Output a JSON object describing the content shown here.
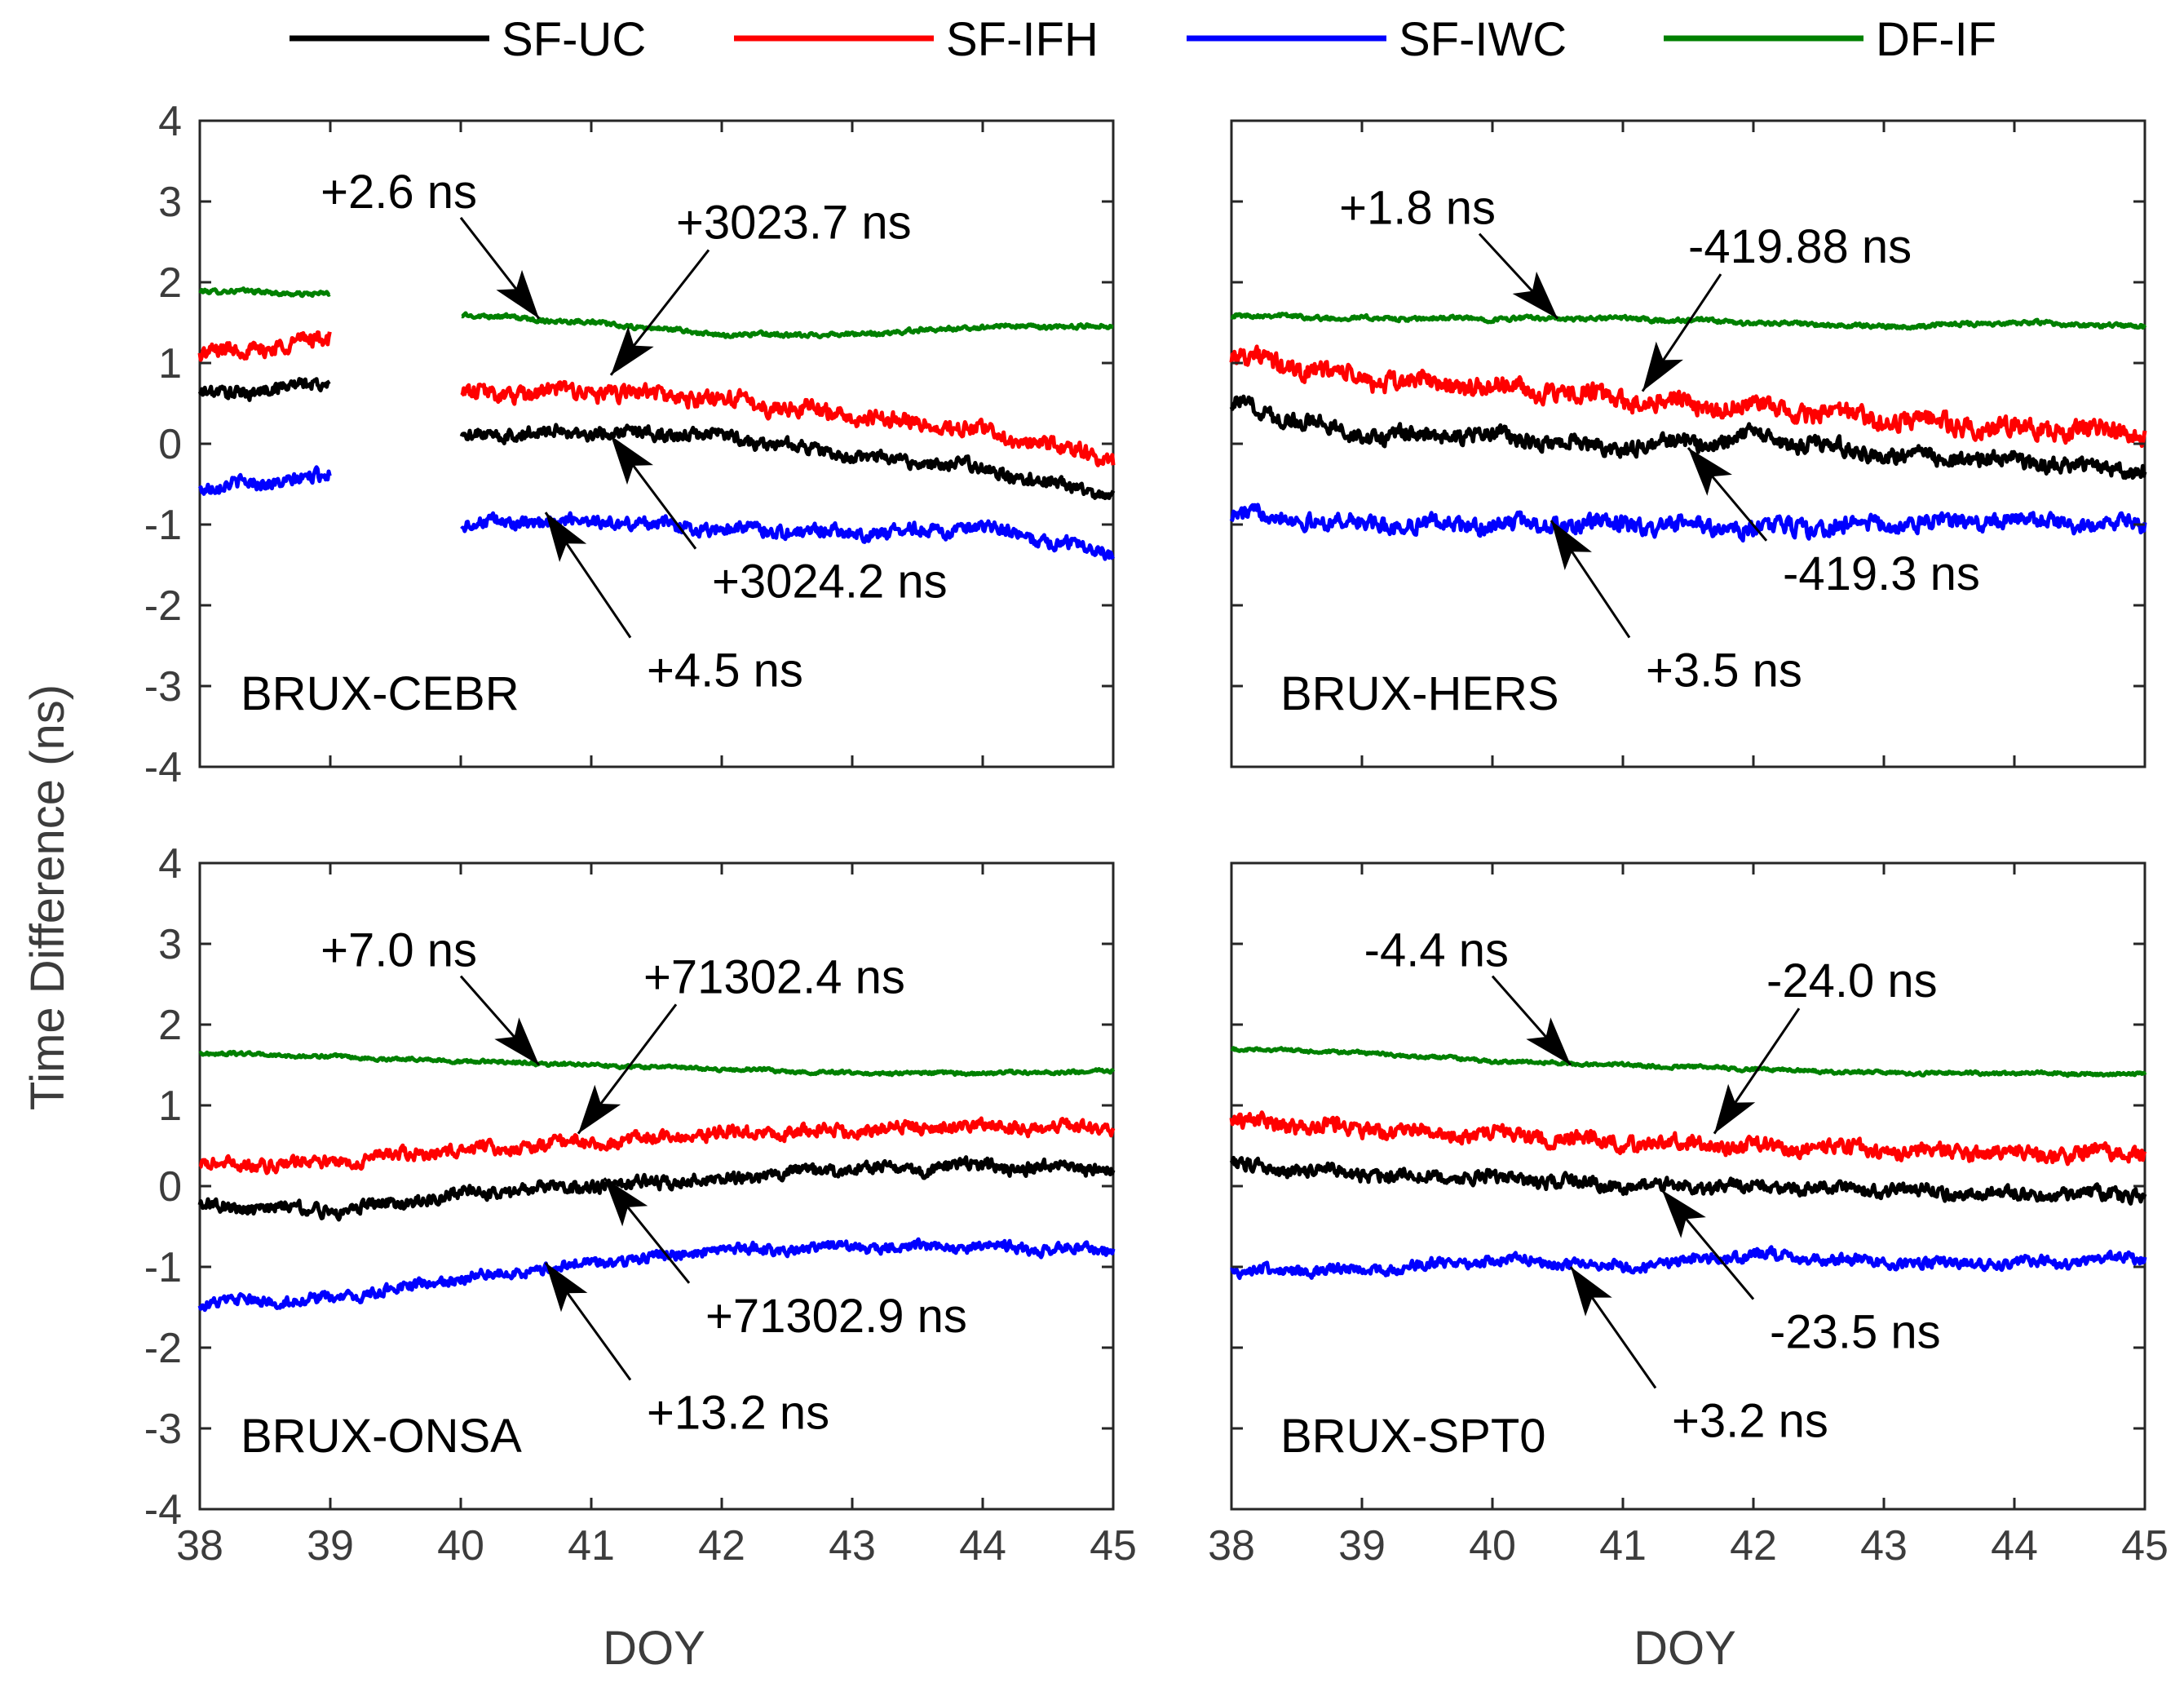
{
  "chart_data": {
    "type": "line",
    "ylabel": "Time Difference (ns)",
    "xlabel": "DOY",
    "xlim": [
      38,
      45
    ],
    "ylim": [
      -4,
      4
    ],
    "xticks": [
      "38",
      "39",
      "40",
      "41",
      "42",
      "43",
      "44",
      "45"
    ],
    "yticks": [
      "4",
      "3",
      "2",
      "1",
      "0",
      "-1",
      "-2",
      "-3",
      "-4"
    ],
    "legend": {
      "placement": "top-center",
      "entries": [
        {
          "name": "SF-UC",
          "color": "#000000"
        },
        {
          "name": "SF-IFH",
          "color": "#ff0000"
        },
        {
          "name": "SF-IWC",
          "color": "#0000ff"
        },
        {
          "name": "DF-IF",
          "color": "#008000"
        }
      ]
    },
    "panels": [
      {
        "label": "BRUX-CEBR",
        "gap": [
          39,
          40
        ],
        "series": [
          {
            "name": "SF-UC",
            "color": "#000000",
            "x": [
              38,
              39,
              40,
              41,
              42,
              43,
              44,
              45
            ],
            "y": [
              0.6,
              0.75,
              0.1,
              0.15,
              0.1,
              -0.15,
              -0.3,
              -0.65
            ],
            "noise": 0.12
          },
          {
            "name": "SF-IFH",
            "color": "#ff0000",
            "x": [
              38,
              39,
              40,
              41,
              42,
              43,
              44,
              45
            ],
            "y": [
              1.1,
              1.3,
              0.6,
              0.65,
              0.55,
              0.35,
              0.15,
              -0.2
            ],
            "noise": 0.15
          },
          {
            "name": "SF-IWC",
            "color": "#0000ff",
            "x": [
              38,
              39,
              40,
              41,
              42,
              43,
              44,
              45
            ],
            "y": [
              -0.55,
              -0.4,
              -1.0,
              -0.95,
              -1.05,
              -1.1,
              -1.05,
              -1.35
            ],
            "noise": 0.12
          },
          {
            "name": "DF-IF",
            "color": "#008000",
            "x": [
              38,
              39,
              40,
              41,
              42,
              43,
              44,
              45
            ],
            "y": [
              1.9,
              1.85,
              1.6,
              1.5,
              1.35,
              1.35,
              1.45,
              1.45
            ],
            "noise": 0.04
          }
        ],
        "annotations": [
          {
            "text": "+2.6 ns",
            "target": "DF-IF",
            "tip": [
              40.6,
              1.55
            ],
            "tail": [
              40.0,
              2.8
            ]
          },
          {
            "text": "+3023.7 ns",
            "target": "SF-IFH",
            "tip": [
              41.15,
              0.85
            ],
            "tail": [
              41.9,
              2.4
            ]
          },
          {
            "text": "+3024.2 ns",
            "target": "SF-UC",
            "tip": [
              41.15,
              0.1
            ],
            "tail": [
              41.8,
              -1.3
            ]
          },
          {
            "text": "+4.5 ns",
            "target": "SF-IWC",
            "tip": [
              40.65,
              -0.85
            ],
            "tail": [
              41.3,
              -2.4
            ]
          }
        ]
      },
      {
        "label": "BRUX-HERS",
        "gap": null,
        "series": [
          {
            "name": "SF-UC",
            "color": "#000000",
            "x": [
              38,
              39,
              40,
              41,
              42,
              43,
              44,
              45
            ],
            "y": [
              0.5,
              0.1,
              0.1,
              -0.05,
              0.1,
              -0.15,
              -0.2,
              -0.35
            ],
            "noise": 0.15
          },
          {
            "name": "SF-IFH",
            "color": "#ff0000",
            "x": [
              38,
              39,
              40,
              41,
              42,
              43,
              44,
              45
            ],
            "y": [
              1.1,
              0.8,
              0.7,
              0.55,
              0.45,
              0.3,
              0.2,
              0.15
            ],
            "noise": 0.18
          },
          {
            "name": "SF-IWC",
            "color": "#0000ff",
            "x": [
              38,
              39,
              40,
              41,
              42,
              43,
              44,
              45
            ],
            "y": [
              -0.85,
              -1.0,
              -1.0,
              -1.0,
              -1.05,
              -1.0,
              -0.95,
              -1.0
            ],
            "noise": 0.15
          },
          {
            "name": "DF-IF",
            "color": "#008000",
            "x": [
              38,
              39,
              40,
              41,
              42,
              43,
              44,
              45
            ],
            "y": [
              1.6,
              1.55,
              1.55,
              1.55,
              1.5,
              1.45,
              1.5,
              1.45
            ],
            "noise": 0.04
          }
        ],
        "annotations": [
          {
            "text": "+1.8 ns",
            "target": "DF-IF",
            "tip": [
              40.5,
              1.55
            ],
            "tail": [
              39.9,
              2.6
            ]
          },
          {
            "text": "-419.88 ns",
            "target": "SF-IFH",
            "tip": [
              41.15,
              0.65
            ],
            "tail": [
              41.75,
              2.1
            ]
          },
          {
            "text": "-419.3 ns",
            "target": "SF-UC",
            "tip": [
              41.5,
              -0.05
            ],
            "tail": [
              42.1,
              -1.2
            ]
          },
          {
            "text": "+3.5 ns",
            "target": "SF-IWC",
            "tip": [
              40.45,
              -0.95
            ],
            "tail": [
              41.05,
              -2.4
            ]
          }
        ]
      },
      {
        "label": "BRUX-ONSA",
        "gap": null,
        "series": [
          {
            "name": "SF-UC",
            "color": "#000000",
            "x": [
              38,
              39,
              40,
              41,
              42,
              43,
              44,
              45
            ],
            "y": [
              -0.25,
              -0.3,
              -0.1,
              0.0,
              0.1,
              0.2,
              0.25,
              0.2
            ],
            "noise": 0.12
          },
          {
            "name": "SF-IFH",
            "color": "#ff0000",
            "x": [
              38,
              39,
              40,
              41,
              42,
              43,
              44,
              45
            ],
            "y": [
              0.25,
              0.3,
              0.45,
              0.55,
              0.65,
              0.7,
              0.75,
              0.7
            ],
            "noise": 0.12
          },
          {
            "name": "SF-IWC",
            "color": "#0000ff",
            "x": [
              38,
              39,
              40,
              41,
              42,
              43,
              44,
              45
            ],
            "y": [
              -1.45,
              -1.4,
              -1.15,
              -0.95,
              -0.8,
              -0.75,
              -0.75,
              -0.8
            ],
            "noise": 0.1
          },
          {
            "name": "DF-IF",
            "color": "#008000",
            "x": [
              38,
              39,
              40,
              41,
              42,
              43,
              44,
              45
            ],
            "y": [
              1.65,
              1.6,
              1.55,
              1.5,
              1.45,
              1.4,
              1.4,
              1.42
            ],
            "noise": 0.03
          }
        ],
        "annotations": [
          {
            "text": "+7.0 ns",
            "target": "DF-IF",
            "tip": [
              40.6,
              1.5
            ],
            "tail": [
              40.0,
              2.6
            ]
          },
          {
            "text": "+71302.4 ns",
            "target": "SF-IFH",
            "tip": [
              40.9,
              0.65
            ],
            "tail": [
              41.65,
              2.25
            ]
          },
          {
            "text": "+71302.9 ns",
            "target": "SF-UC",
            "tip": [
              41.1,
              0.1
            ],
            "tail": [
              41.75,
              -1.2
            ]
          },
          {
            "text": "+13.2 ns",
            "target": "SF-IWC",
            "tip": [
              40.65,
              -0.95
            ],
            "tail": [
              41.3,
              -2.4
            ]
          }
        ]
      },
      {
        "label": "BRUX-SPT0",
        "gap": null,
        "series": [
          {
            "name": "SF-UC",
            "color": "#000000",
            "x": [
              38,
              39,
              40,
              41,
              42,
              43,
              44,
              45
            ],
            "y": [
              0.25,
              0.15,
              0.1,
              0.0,
              0.0,
              -0.05,
              -0.1,
              -0.1
            ],
            "noise": 0.12
          },
          {
            "name": "SF-IFH",
            "color": "#ff0000",
            "x": [
              38,
              39,
              40,
              41,
              42,
              43,
              44,
              45
            ],
            "y": [
              0.8,
              0.7,
              0.65,
              0.55,
              0.5,
              0.45,
              0.4,
              0.4
            ],
            "noise": 0.14
          },
          {
            "name": "SF-IWC",
            "color": "#0000ff",
            "x": [
              38,
              39,
              40,
              41,
              42,
              43,
              44,
              45
            ],
            "y": [
              -1.05,
              -1.05,
              -0.9,
              -1.0,
              -0.85,
              -0.95,
              -0.95,
              -0.9
            ],
            "noise": 0.1
          },
          {
            "name": "DF-IF",
            "color": "#008000",
            "x": [
              38,
              39,
              40,
              41,
              42,
              43,
              44,
              45
            ],
            "y": [
              1.7,
              1.65,
              1.55,
              1.5,
              1.45,
              1.4,
              1.4,
              1.38
            ],
            "noise": 0.03
          }
        ],
        "annotations": [
          {
            "text": "-4.4 ns",
            "target": "DF-IF",
            "tip": [
              40.6,
              1.5
            ],
            "tail": [
              40.0,
              2.6
            ]
          },
          {
            "text": "-24.0 ns",
            "target": "SF-IFH",
            "tip": [
              41.7,
              0.65
            ],
            "tail": [
              42.35,
              2.2
            ]
          },
          {
            "text": "-23.5 ns",
            "target": "SF-UC",
            "tip": [
              41.3,
              -0.05
            ],
            "tail": [
              42.0,
              -1.4
            ]
          },
          {
            "text": "+3.2 ns",
            "target": "SF-IWC",
            "tip": [
              40.6,
              -1.0
            ],
            "tail": [
              41.25,
              -2.5
            ]
          }
        ]
      }
    ]
  }
}
